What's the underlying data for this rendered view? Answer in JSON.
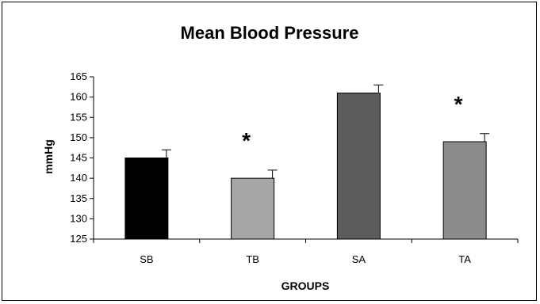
{
  "chart_data": {
    "type": "bar",
    "title": "Mean Blood Pressure",
    "xlabel": "GROUPS",
    "ylabel": "mmHg",
    "categories": [
      "SB",
      "TB",
      "SA",
      "TA"
    ],
    "values": [
      145,
      140,
      161,
      149
    ],
    "errors": [
      2,
      2,
      2,
      2
    ],
    "annotations": [
      "",
      "*",
      "",
      "*"
    ],
    "bar_colors": [
      "#000000",
      "#a6a6a6",
      "#5c5c5c",
      "#8c8c8c"
    ],
    "yticks": [
      125,
      130,
      135,
      140,
      145,
      150,
      155,
      160,
      165
    ],
    "ylim": [
      125,
      165
    ],
    "grid": false,
    "legend": "none"
  }
}
